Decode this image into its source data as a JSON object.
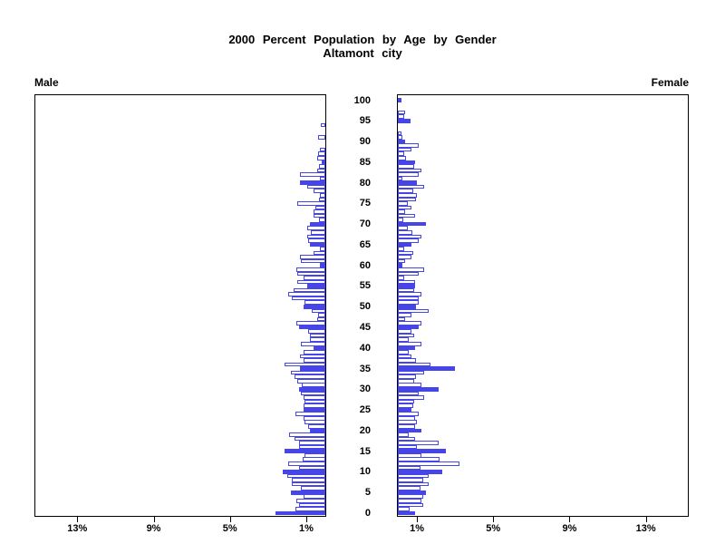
{
  "title": {
    "line1": "2000 Percent Population by Age by Gender",
    "line2": "Altamont city"
  },
  "panels": {
    "male_label": "Male",
    "female_label": "Female"
  },
  "axis": {
    "x_max_percent": 15.2,
    "x_ticks": [
      1,
      5,
      9,
      13
    ],
    "x_tick_labels": [
      "1%",
      "5%",
      "9%",
      "13%"
    ],
    "age_min": 0,
    "age_max": 100,
    "age_tick_step": 5,
    "age_tick_labels": [
      "0",
      "5",
      "10",
      "15",
      "20",
      "25",
      "30",
      "35",
      "40",
      "45",
      "50",
      "55",
      "60",
      "65",
      "70",
      "75",
      "80",
      "85",
      "90",
      "95",
      "100"
    ]
  },
  "colors": {
    "bar_outline": "#4646e8",
    "bar_fill_highlight": "#4646e8",
    "bar_fill_normal": "#ffffff",
    "frame": "#000000",
    "text": "#000000",
    "background": "#ffffff"
  },
  "chart_data": {
    "type": "bar",
    "variant": "population-pyramid",
    "title": "2000 Percent Population by Age by Gender",
    "subtitle": "Altamont city",
    "units": "percent of population",
    "xlim": [
      0,
      15.2
    ],
    "ages": "single years 0 through 100, bottom to top",
    "highlighted_ages": [
      0,
      5,
      10,
      15,
      20,
      25,
      30,
      35,
      40,
      45,
      50,
      55,
      60,
      65,
      70,
      80,
      85,
      90,
      95,
      100
    ],
    "series": [
      {
        "name": "Male",
        "side": "left",
        "values_by_age_0_to_100": [
          2.6,
          1.55,
          1.4,
          1.5,
          1.15,
          1.8,
          1.3,
          1.75,
          1.75,
          2.0,
          2.25,
          1.4,
          1.95,
          1.2,
          1.1,
          2.15,
          1.4,
          1.4,
          1.6,
          1.9,
          0.8,
          0.9,
          1.1,
          1.15,
          1.55,
          1.15,
          1.15,
          1.1,
          1.15,
          1.3,
          1.4,
          1.25,
          1.45,
          1.6,
          1.8,
          1.35,
          2.15,
          1.15,
          1.35,
          1.15,
          0.6,
          1.3,
          0.8,
          0.8,
          0.9,
          1.4,
          1.5,
          0.45,
          0.4,
          0.7,
          1.15,
          1.1,
          1.75,
          1.95,
          1.65,
          0.95,
          1.45,
          1.15,
          1.45,
          1.5,
          0.3,
          1.3,
          1.35,
          0.6,
          0.3,
          0.8,
          0.9,
          0.95,
          0.75,
          0.95,
          0.8,
          0.35,
          0.6,
          0.6,
          0.5,
          1.45,
          0.35,
          0.3,
          0.6,
          0.95,
          1.35,
          0.3,
          1.35,
          0.45,
          0.35,
          0.2,
          0.45,
          0.4,
          0.3,
          0,
          0,
          0.4,
          0,
          0,
          0.25,
          0,
          0,
          0,
          0,
          0,
          0
        ]
      },
      {
        "name": "Female",
        "side": "right",
        "values_by_age_0_to_100": [
          0.9,
          0.6,
          1.35,
          1.25,
          1.35,
          1.45,
          1.2,
          1.6,
          1.35,
          1.6,
          2.35,
          1.2,
          3.25,
          2.2,
          1.25,
          2.5,
          1.0,
          2.15,
          0.9,
          0.55,
          1.25,
          0.9,
          1.0,
          0.9,
          1.1,
          0.7,
          0.8,
          0.85,
          1.4,
          1.1,
          2.15,
          1.25,
          0.85,
          0.95,
          1.4,
          3.0,
          1.7,
          0.95,
          0.7,
          0.55,
          0.9,
          1.25,
          0.55,
          0.85,
          0.7,
          1.1,
          1.25,
          0.4,
          0.7,
          1.6,
          0.95,
          1.1,
          1.1,
          1.25,
          0.85,
          0.9,
          0.9,
          0.35,
          1.1,
          1.4,
          0.25,
          0.4,
          0.7,
          0.8,
          0.35,
          0.7,
          1.1,
          1.25,
          0.75,
          0.5,
          1.45,
          0.3,
          0.9,
          0.4,
          0.7,
          0.5,
          0.95,
          1.0,
          0.8,
          1.4,
          1.0,
          0.25,
          1.1,
          1.25,
          0.85,
          0.9,
          0.45,
          0.35,
          0.7,
          1.1,
          0.4,
          0.25,
          0.2,
          0,
          0,
          0.65,
          0.35,
          0.4,
          0,
          0,
          0.2
        ]
      }
    ]
  }
}
